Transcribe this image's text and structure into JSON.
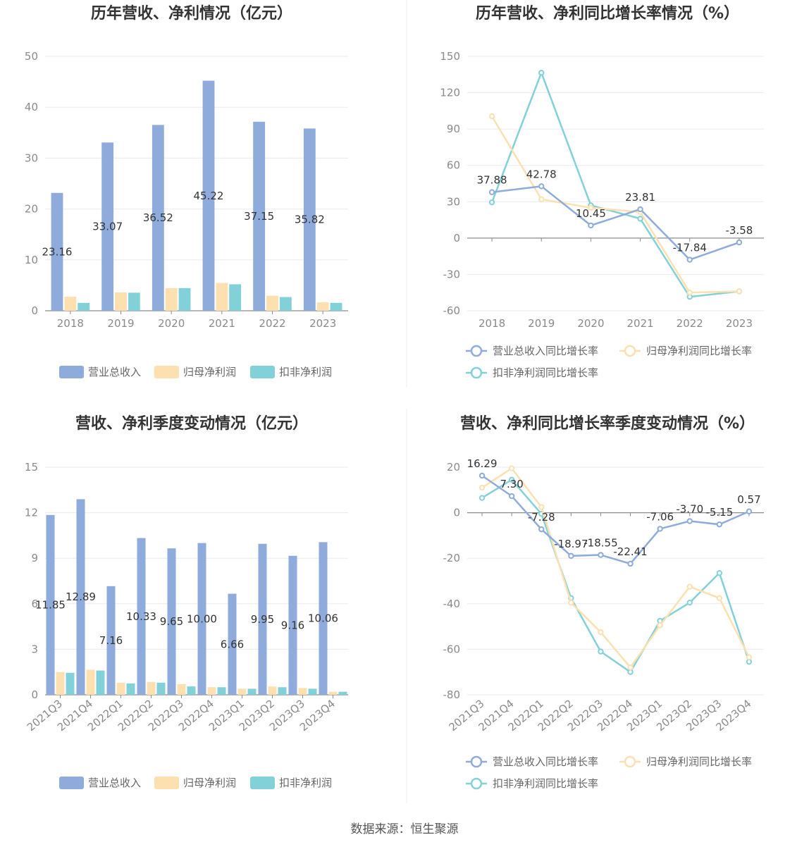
{
  "source_note": "数据来源：恒生聚源",
  "colors": {
    "revenue": "#8eabdb",
    "net_profit": "#fde0b0",
    "deducted_profit": "#83d1d8",
    "grid": "#e8ebf3",
    "axis": "#8c8c8c",
    "divider": "#eeeeee"
  },
  "chart_data": [
    {
      "id": "annual_values",
      "type": "bar",
      "title": "历年营收、净利情况（亿元）",
      "categories": [
        "2018",
        "2019",
        "2020",
        "2021",
        "2022",
        "2023"
      ],
      "series": [
        {
          "name": "营业总收入",
          "values": [
            23.16,
            33.07,
            36.52,
            45.22,
            37.15,
            35.82
          ],
          "labels": [
            "23.16",
            "33.07",
            "36.52",
            "45.22",
            "37.15",
            "35.82"
          ]
        },
        {
          "name": "归母净利润",
          "values": [
            2.75,
            3.6,
            4.45,
            5.45,
            2.95,
            1.65
          ]
        },
        {
          "name": "扣非净利润",
          "values": [
            1.55,
            3.55,
            4.45,
            5.2,
            2.7,
            1.55
          ]
        }
      ],
      "ylim": [
        0,
        50
      ],
      "yticks": [
        "0",
        "10",
        "20",
        "30",
        "40",
        "50"
      ],
      "legend": "bottom"
    },
    {
      "id": "annual_growth",
      "type": "line",
      "title": "历年营收、净利同比增长率情况（%）",
      "categories": [
        "2018",
        "2019",
        "2020",
        "2021",
        "2022",
        "2023"
      ],
      "series": [
        {
          "name": "营业总收入同比增长率",
          "values": [
            37.88,
            42.78,
            10.45,
            23.81,
            -17.84,
            -3.58
          ],
          "labels": [
            "37.88",
            "42.78",
            "10.45",
            "23.81",
            "-17.84",
            "-3.58"
          ]
        },
        {
          "name": "归母净利润同比增长率",
          "values": [
            100.5,
            32.0,
            25.0,
            21.5,
            -45.0,
            -44.0
          ]
        },
        {
          "name": "扣非净利润同比增长率",
          "values": [
            29.5,
            136.5,
            27.0,
            16.0,
            -48.5,
            -44.0
          ]
        }
      ],
      "ylim": [
        -60,
        150
      ],
      "yticks": [
        "-60",
        "-30",
        "0",
        "30",
        "60",
        "90",
        "120",
        "150"
      ],
      "legend": "bottom"
    },
    {
      "id": "quarterly_values",
      "type": "bar",
      "title": "营收、净利季度变动情况（亿元）",
      "categories": [
        "2021Q3",
        "2021Q4",
        "2022Q1",
        "2022Q2",
        "2022Q3",
        "2022Q4",
        "2023Q1",
        "2023Q2",
        "2023Q3",
        "2023Q4"
      ],
      "series": [
        {
          "name": "营业总收入",
          "values": [
            11.85,
            12.89,
            7.16,
            10.33,
            9.65,
            10.0,
            6.66,
            9.95,
            9.16,
            10.06
          ],
          "labels": [
            "11.85",
            "12.89",
            "7.16",
            "10.33",
            "9.65",
            "10.00",
            "6.66",
            "9.95",
            "9.16",
            "10.06"
          ]
        },
        {
          "name": "归母净利润",
          "values": [
            1.5,
            1.65,
            0.8,
            0.85,
            0.7,
            0.5,
            0.4,
            0.55,
            0.45,
            0.2
          ]
        },
        {
          "name": "扣非净利润",
          "values": [
            1.45,
            1.6,
            0.75,
            0.8,
            0.55,
            0.5,
            0.4,
            0.5,
            0.4,
            0.2
          ]
        }
      ],
      "ylim": [
        0,
        15
      ],
      "yticks": [
        "0",
        "3",
        "6",
        "9",
        "12",
        "15"
      ],
      "legend": "bottom"
    },
    {
      "id": "quarterly_growth",
      "type": "line",
      "title": "营收、净利同比增长率季度变动情况（%）",
      "categories": [
        "2021Q3",
        "2021Q4",
        "2022Q1",
        "2022Q2",
        "2022Q3",
        "2022Q4",
        "2023Q1",
        "2023Q2",
        "2023Q3",
        "2023Q4"
      ],
      "series": [
        {
          "name": "营业总收入同比增长率",
          "values": [
            16.29,
            7.3,
            -7.28,
            -18.97,
            -18.55,
            -22.41,
            -7.06,
            -3.7,
            -5.15,
            0.57
          ],
          "labels": [
            "16.29",
            "7.30",
            "-7.28",
            "-18.97",
            "-18.55",
            "-22.41",
            "-7.06",
            "-3.70",
            "-5.15",
            "0.57"
          ]
        },
        {
          "name": "归母净利润同比增长率",
          "values": [
            11.0,
            19.5,
            2.5,
            -39.5,
            -52.5,
            -68.0,
            -49.5,
            -32.5,
            -37.5,
            -63.5
          ]
        },
        {
          "name": "扣非净利润同比增长率",
          "values": [
            6.5,
            14.5,
            -0.5,
            -37.5,
            -61.0,
            -70.0,
            -47.5,
            -39.5,
            -26.5,
            -65.5
          ]
        }
      ],
      "ylim": [
        -80,
        20
      ],
      "yticks": [
        "-80",
        "-60",
        "-40",
        "-20",
        "0",
        "20"
      ],
      "legend": "bottom"
    }
  ]
}
